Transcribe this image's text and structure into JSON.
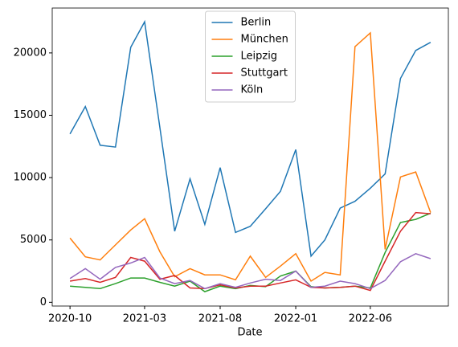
{
  "chart_data": {
    "type": "line",
    "xlabel": "Date",
    "x": [
      "2020-10",
      "2020-11",
      "2020-12",
      "2021-01",
      "2021-02",
      "2021-03",
      "2021-04",
      "2021-05",
      "2021-06",
      "2021-07",
      "2021-08",
      "2021-09",
      "2021-10",
      "2021-11",
      "2021-12",
      "2022-01",
      "2022-02",
      "2022-03",
      "2022-04",
      "2022-05",
      "2022-06",
      "2022-07",
      "2022-08",
      "2022-09",
      "2022-10"
    ],
    "xlim": [
      "2020-08-26",
      "2022-11-06"
    ],
    "xticks": [
      "2020-10",
      "2021-03",
      "2021-08",
      "2022-01",
      "2022-06"
    ],
    "ylim": [
      -300,
      23600
    ],
    "yticks": [
      0,
      5000,
      10000,
      15000,
      20000
    ],
    "legend": "upper center",
    "series": [
      {
        "name": "Berlin",
        "color": "#1f77b4",
        "values": [
          13500,
          15700,
          12600,
          12450,
          20450,
          22500,
          14000,
          5700,
          9900,
          6250,
          10800,
          5600,
          6100,
          7500,
          8900,
          12250,
          3700,
          5000,
          7550,
          8100,
          9150,
          10300,
          17950,
          20200,
          20850
        ]
      },
      {
        "name": "München",
        "color": "#ff7f0e",
        "values": [
          5150,
          3650,
          3400,
          4600,
          5800,
          6700,
          4050,
          2050,
          2700,
          2200,
          2200,
          1800,
          3700,
          2000,
          2900,
          3900,
          1700,
          2400,
          2200,
          20500,
          21600,
          4250,
          10050,
          10450,
          7200
        ]
      },
      {
        "name": "Leipzig",
        "color": "#2ca02c",
        "values": [
          1300,
          1200,
          1100,
          1500,
          1950,
          1950,
          1600,
          1300,
          1700,
          850,
          1300,
          1100,
          1350,
          1250,
          2100,
          2500,
          1250,
          1150,
          1200,
          1300,
          1150,
          4000,
          6400,
          6650,
          7150
        ]
      },
      {
        "name": "Stuttgart",
        "color": "#d62728",
        "values": [
          1700,
          1900,
          1600,
          2000,
          3600,
          3300,
          1850,
          2150,
          1150,
          1100,
          1400,
          1150,
          1300,
          1300,
          1550,
          1800,
          1200,
          1150,
          1200,
          1300,
          950,
          3300,
          5700,
          7200,
          7100
        ]
      },
      {
        "name": "Köln",
        "color": "#9467bd",
        "values": [
          1900,
          2700,
          1850,
          2800,
          3150,
          3600,
          1950,
          1500,
          1750,
          1100,
          1500,
          1200,
          1550,
          1850,
          1750,
          2500,
          1200,
          1300,
          1700,
          1500,
          1100,
          1750,
          3250,
          3900,
          3500
        ]
      }
    ]
  }
}
